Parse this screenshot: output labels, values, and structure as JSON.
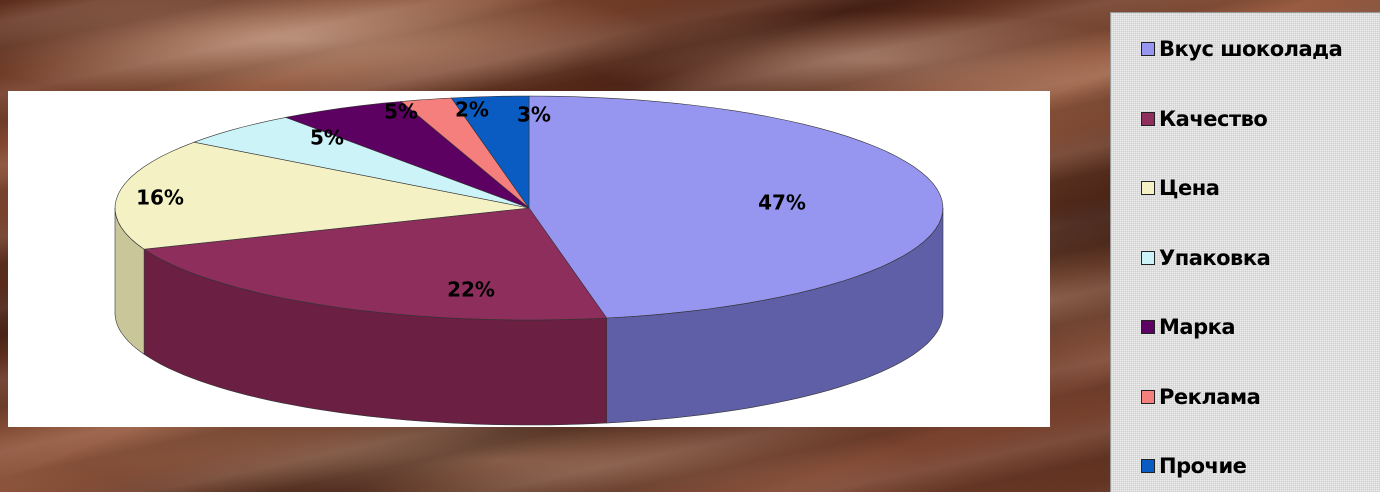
{
  "chart_data": {
    "type": "pie",
    "title": "",
    "pie_style": "3d-exploded-perspective",
    "legend_position": "right",
    "series": [
      {
        "slices": [
          {
            "label": "Вкус шоколада",
            "value": 47,
            "display": "47%",
            "color": "#9696f0",
            "side_color": "#5f5fa8"
          },
          {
            "label": "Качество",
            "value": 22,
            "display": "22%",
            "color": "#8e2e5c",
            "side_color": "#6a1f43"
          },
          {
            "label": "Цена",
            "value": 16,
            "display": "16%",
            "color": "#f4f2c4",
            "side_color": "#c9c69a"
          },
          {
            "label": "Упаковка",
            "value": 5,
            "display": "5%",
            "color": "#ccf4f8",
            "side_color": "#9ec6ca"
          },
          {
            "label": "Марка",
            "value": 5,
            "display": "5%",
            "color": "#5c0062",
            "side_color": "#3d0042"
          },
          {
            "label": "Реклама",
            "value": 2,
            "display": "2%",
            "color": "#f57f7c",
            "side_color": "#c05c5a"
          },
          {
            "label": "Прочие",
            "value": 3,
            "display": "3%",
            "color": "#0a5cc2",
            "side_color": "#074089"
          }
        ]
      }
    ]
  }
}
